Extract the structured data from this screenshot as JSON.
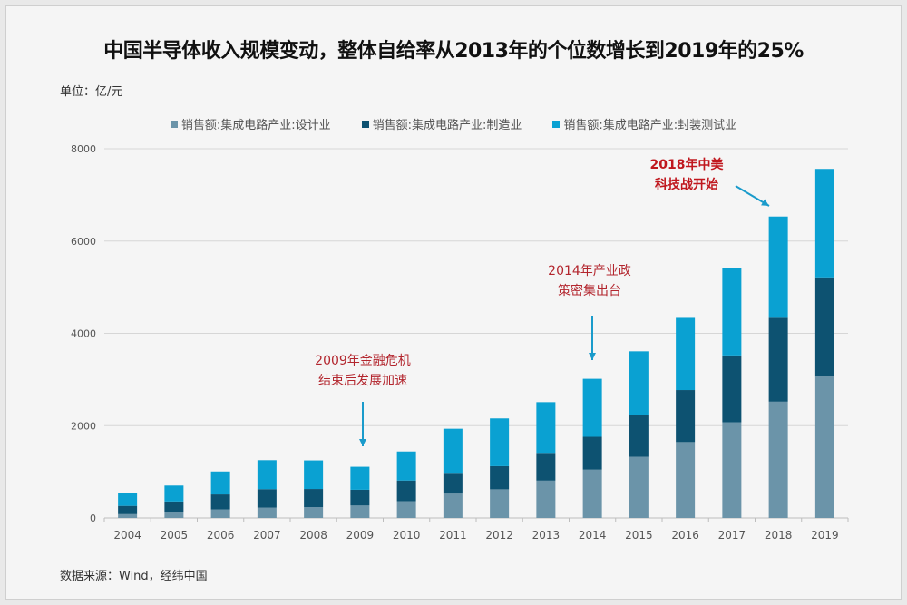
{
  "chart_data": {
    "type": "bar",
    "stacked": true,
    "title": "中国半导体收入规模变动，整体自给率从2013年的个位数增长到2019年的25%",
    "unit_label": "单位：亿/元",
    "source": "数据来源：Wind，经纬中国",
    "categories": [
      "2004",
      "2005",
      "2006",
      "2007",
      "2008",
      "2009",
      "2010",
      "2011",
      "2012",
      "2013",
      "2014",
      "2015",
      "2016",
      "2017",
      "2018",
      "2019"
    ],
    "series": [
      {
        "name": "销售额:集成电路产业:设计业",
        "color": "#6b94a9",
        "values": [
          82,
          124,
          186,
          226,
          235,
          270,
          364,
          527,
          621,
          809,
          1047,
          1325,
          1644,
          2073,
          2519,
          3064
        ]
      },
      {
        "name": "销售额:集成电路产业:制造业",
        "color": "#0d5271",
        "values": [
          180,
          233,
          324,
          398,
          393,
          341,
          447,
          431,
          501,
          601,
          712,
          901,
          1127,
          1448,
          1818,
          2149
        ]
      },
      {
        "name": "销售额:集成电路产业:封装测试业",
        "color": "#0aa1d2",
        "values": [
          283,
          345,
          497,
          628,
          619,
          498,
          629,
          975,
          1035,
          1099,
          1256,
          1384,
          1564,
          1890,
          2194,
          2350
        ]
      }
    ],
    "ylim": [
      0,
      8000
    ],
    "yticks": [
      "0",
      "2000",
      "4000",
      "6000",
      "8000"
    ],
    "grid": true,
    "legend_position": "top",
    "annotations": [
      {
        "lines": [
          "2009年金融危机",
          "结束后发展加速"
        ],
        "year": "2009",
        "color": "#b3262e",
        "bold": false
      },
      {
        "lines": [
          "2014年产业政",
          "策密集出台"
        ],
        "year": "2014",
        "color": "#b3262e",
        "bold": false
      },
      {
        "lines": [
          "2018年中美",
          "科技战开始"
        ],
        "year": "2018",
        "color": "#c0171e",
        "bold": true
      }
    ],
    "arrow_color": "#1a9bcb"
  }
}
